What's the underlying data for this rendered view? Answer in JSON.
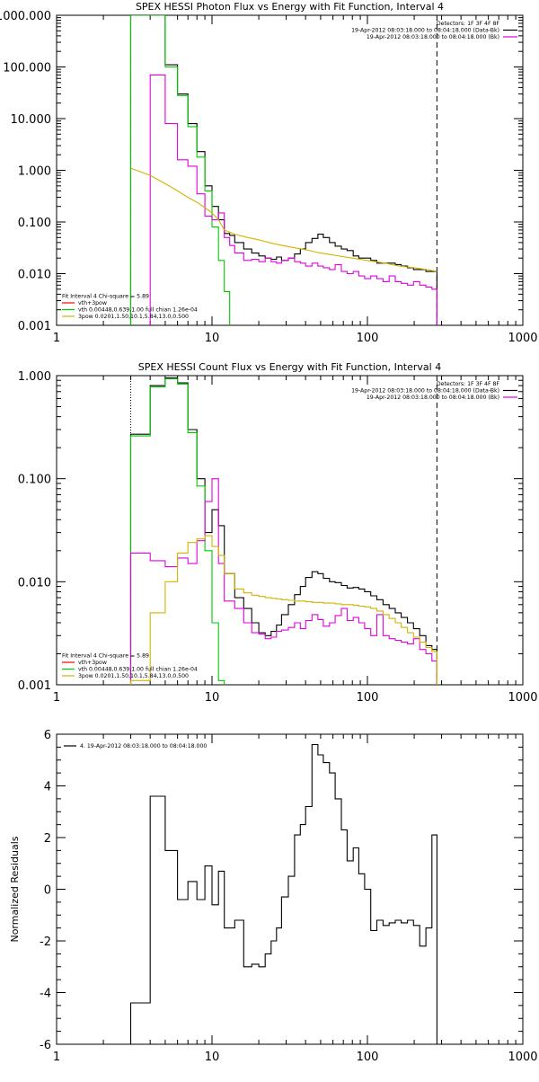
{
  "colors": {
    "data": "#000000",
    "background": "#d40000",
    "total_fit": "#ff0000",
    "vth": "#00c800",
    "vth2": "#0000ff",
    "spow": "#d2b400",
    "magenta": "#e000e0",
    "axis": "#000000"
  },
  "chart_data": [
    {
      "id": "photon",
      "type": "line",
      "title": "SPEX HESSI Photon Flux vs Energy with Fit Function, Interval 4",
      "xlabel": "",
      "ylabel": "",
      "xscale": "log",
      "yscale": "log",
      "xlim": [
        1,
        1000
      ],
      "ylim": [
        0.001,
        1000
      ],
      "x_ticks": [
        1,
        10,
        100,
        1000
      ],
      "x_tick_labels": [
        "1",
        "10",
        "100",
        "1000"
      ],
      "y_ticks": [
        0.001,
        0.01,
        0.1,
        1,
        10,
        100,
        1000
      ],
      "y_tick_labels": [
        "0.001",
        "0.010",
        "0.100",
        "1.000",
        "10.000",
        "100.000",
        "1000.000"
      ],
      "legend_top": {
        "placement": "top-right",
        "lines": [
          {
            "text": "Detectors: 1F 3F 4F 8F",
            "color": ""
          },
          {
            "text": "19-Apr-2012 08:03:18.000 to 08:04:18.000 (Data-Bk)",
            "color": "#000000"
          },
          {
            "text": "19-Apr-2012 08:03:18.000 to 08:04:18.000 (Bk)",
            "color": "#e000e0"
          }
        ]
      },
      "legend_bottom": {
        "placement": "bottom-left",
        "lines": [
          {
            "text": "Fit Interval 4   Chi-square = 5.89",
            "color": ""
          },
          {
            "text": "vth+3pow",
            "color": "#ff0000"
          },
          {
            "text": "vth 0.00448,0.639,1.00  full chian 1.26e-04",
            "color": "#00c800"
          },
          {
            "text": "3pow 0.0201,1.50,10.1,5.84,13.0,0.500",
            "color": "#d2b400"
          }
        ]
      },
      "vlines": [
        {
          "x": 3,
          "style": "dotted",
          "color": "#d2b400"
        },
        {
          "x": 280,
          "style": "dashed",
          "color": "#000000"
        }
      ],
      "series": [
        {
          "key": "data",
          "color": "#000000",
          "edges": [
            3,
            4,
            5,
            6,
            7,
            8,
            9,
            10,
            11,
            12,
            13,
            14,
            16,
            18,
            20,
            22,
            24,
            26,
            28,
            31,
            34,
            37,
            40,
            44,
            48,
            52,
            57,
            62,
            68,
            74,
            81,
            88,
            96,
            105,
            115,
            126,
            138,
            151,
            165,
            181,
            198,
            217,
            238,
            260,
            280
          ],
          "values": [
            1000,
            1000,
            110,
            30,
            8,
            2.3,
            0.5,
            0.2,
            0.11,
            0.06,
            0.055,
            0.04,
            0.03,
            0.025,
            0.022,
            0.02,
            0.019,
            0.021,
            0.018,
            0.02,
            0.024,
            0.03,
            0.04,
            0.048,
            0.058,
            0.05,
            0.04,
            0.034,
            0.03,
            0.028,
            0.022,
            0.02,
            0.02,
            0.018,
            0.016,
            0.016,
            0.016,
            0.015,
            0.014,
            0.013,
            0.012,
            0.012,
            0.011,
            0.011
          ]
        },
        {
          "key": "vth",
          "color": "#00c800",
          "edges": [
            3,
            4,
            5,
            6,
            7,
            8,
            9,
            10,
            11,
            12,
            13
          ],
          "values": [
            1000,
            1000,
            100,
            28,
            7,
            1.8,
            0.4,
            0.08,
            0.018,
            0.0045
          ]
        },
        {
          "key": "magenta",
          "color": "#e000e0",
          "edges": [
            4,
            5,
            6,
            7,
            8,
            9,
            10,
            11,
            12,
            13,
            14,
            16,
            18,
            20,
            22,
            24,
            26,
            28,
            31,
            34,
            37,
            40,
            44,
            48,
            52,
            57,
            62,
            68,
            74,
            81,
            88,
            96,
            105,
            115,
            126,
            138,
            151,
            165,
            181,
            198,
            217,
            238,
            260,
            280
          ],
          "values": [
            70,
            8,
            1.6,
            1.2,
            0.35,
            0.13,
            0.11,
            0.15,
            0.05,
            0.035,
            0.025,
            0.018,
            0.019,
            0.017,
            0.02,
            0.017,
            0.016,
            0.018,
            0.02,
            0.017,
            0.016,
            0.014,
            0.016,
            0.014,
            0.013,
            0.012,
            0.015,
            0.011,
            0.01,
            0.011,
            0.009,
            0.008,
            0.009,
            0.008,
            0.007,
            0.009,
            0.007,
            0.0065,
            0.006,
            0.007,
            0.006,
            0.0055,
            0.005
          ]
        },
        {
          "key": "spow",
          "color": "#d2b400",
          "curve": true,
          "x": [
            3,
            4,
            5,
            6,
            7,
            8,
            9,
            10,
            11,
            12,
            14,
            17,
            20,
            25,
            30,
            40,
            50,
            60,
            80,
            100,
            130,
            160,
            200,
            240,
            280
          ],
          "y": [
            1.1,
            0.8,
            0.55,
            0.4,
            0.3,
            0.24,
            0.19,
            0.15,
            0.11,
            0.07,
            0.058,
            0.05,
            0.045,
            0.038,
            0.034,
            0.029,
            0.025,
            0.023,
            0.02,
            0.018,
            0.016,
            0.014,
            0.013,
            0.012,
            0.011
          ]
        }
      ]
    },
    {
      "id": "count",
      "type": "line",
      "title": "SPEX HESSI Count Flux vs Energy with Fit Function, Interval 4",
      "xlabel": "",
      "ylabel": "",
      "xscale": "log",
      "yscale": "log",
      "xlim": [
        1,
        1000
      ],
      "ylim": [
        0.001,
        1
      ],
      "x_ticks": [
        1,
        10,
        100,
        1000
      ],
      "x_tick_labels": [
        "1",
        "10",
        "100",
        "1000"
      ],
      "y_ticks": [
        0.001,
        0.01,
        0.1,
        1
      ],
      "y_tick_labels": [
        "0.001",
        "0.010",
        "0.100",
        "1.000"
      ],
      "legend_top": {
        "placement": "top-right",
        "lines": [
          {
            "text": "Detectors: 1F 3F 4F 8F",
            "color": ""
          },
          {
            "text": "19-Apr-2012 08:03:18.000 to 08:04:18.000 (Data-Bk)",
            "color": "#000000"
          },
          {
            "text": "19-Apr-2012 08:03:18.000 to 08:04:18.000 (Bk)",
            "color": "#e000e0"
          }
        ]
      },
      "legend_bottom": {
        "placement": "bottom-left",
        "lines": [
          {
            "text": "Fit Interval 4   Chi-square = 5.89",
            "color": ""
          },
          {
            "text": "vth+3pow",
            "color": "#ff0000"
          },
          {
            "text": "vth 0.00448,0.639,1.00  full chian 1.26e-04",
            "color": "#00c800"
          },
          {
            "text": "3pow 0.0201,1.50,10.1,5.84,13.0,0.500",
            "color": "#d2b400"
          }
        ]
      },
      "vlines": [
        {
          "x": 3,
          "style": "dotted",
          "color": "#000000"
        },
        {
          "x": 280,
          "style": "dashed",
          "color": "#000000"
        }
      ],
      "series": [
        {
          "key": "data",
          "color": "#000000",
          "edges": [
            3,
            4,
            5,
            6,
            7,
            8,
            9,
            10,
            11,
            12,
            14,
            16,
            18,
            20,
            22,
            24,
            26,
            28,
            31,
            34,
            37,
            40,
            44,
            48,
            52,
            57,
            62,
            68,
            74,
            81,
            88,
            96,
            105,
            115,
            126,
            138,
            151,
            165,
            181,
            198,
            217,
            238,
            260,
            280
          ],
          "values": [
            0.27,
            0.8,
            0.95,
            0.85,
            0.3,
            0.1,
            0.03,
            0.05,
            0.035,
            0.012,
            0.007,
            0.0055,
            0.004,
            0.0032,
            0.003,
            0.0033,
            0.0038,
            0.0048,
            0.006,
            0.0075,
            0.009,
            0.011,
            0.0125,
            0.012,
            0.0108,
            0.01,
            0.0098,
            0.0092,
            0.0087,
            0.0088,
            0.0085,
            0.008,
            0.0073,
            0.0067,
            0.006,
            0.0055,
            0.005,
            0.0045,
            0.004,
            0.0035,
            0.003,
            0.0024,
            0.0022
          ]
        },
        {
          "key": "vth",
          "color": "#00c800",
          "edges": [
            3,
            4,
            5,
            6,
            7,
            8,
            9,
            10,
            11,
            12
          ],
          "values": [
            0.26,
            0.78,
            0.93,
            0.83,
            0.28,
            0.085,
            0.02,
            0.004,
            0.0011
          ]
        },
        {
          "key": "magenta",
          "color": "#e000e0",
          "edges": [
            3,
            4,
            5,
            6,
            7,
            8,
            9,
            10,
            11,
            12,
            14,
            16,
            18,
            20,
            22,
            24,
            26,
            28,
            31,
            34,
            37,
            40,
            44,
            48,
            52,
            57,
            62,
            68,
            74,
            81,
            88,
            96,
            105,
            115,
            126,
            138,
            151,
            165,
            181,
            198,
            217,
            238,
            260,
            280
          ],
          "values": [
            0.019,
            0.016,
            0.014,
            0.017,
            0.015,
            0.025,
            0.06,
            0.1,
            0.015,
            0.0065,
            0.0055,
            0.004,
            0.0032,
            0.0031,
            0.0028,
            0.0029,
            0.0033,
            0.0034,
            0.0036,
            0.004,
            0.0035,
            0.0042,
            0.0048,
            0.0043,
            0.0037,
            0.004,
            0.0047,
            0.0055,
            0.0042,
            0.0045,
            0.004,
            0.0035,
            0.003,
            0.0048,
            0.003,
            0.0028,
            0.0027,
            0.0026,
            0.0025,
            0.0028,
            0.0022,
            0.002,
            0.0017
          ]
        },
        {
          "key": "spow",
          "color": "#d2b400",
          "edges": [
            3,
            4,
            5,
            6,
            7,
            8,
            9,
            10,
            11,
            12,
            14,
            16,
            18,
            20,
            22,
            24,
            26,
            28,
            31,
            34,
            37,
            40,
            44,
            48,
            52,
            57,
            62,
            68,
            74,
            81,
            88,
            96,
            105,
            115,
            126,
            138,
            151,
            165,
            181,
            198,
            217,
            238,
            260,
            280
          ],
          "values": [
            0.0011,
            0.005,
            0.01,
            0.019,
            0.024,
            0.026,
            0.028,
            0.022,
            0.018,
            0.012,
            0.0085,
            0.0078,
            0.0074,
            0.0072,
            0.007,
            0.0069,
            0.0068,
            0.0067,
            0.0066,
            0.0065,
            0.0065,
            0.0064,
            0.0063,
            0.0063,
            0.0062,
            0.0062,
            0.0061,
            0.006,
            0.006,
            0.0059,
            0.0058,
            0.0057,
            0.0055,
            0.0052,
            0.0048,
            0.0044,
            0.004,
            0.0036,
            0.0032,
            0.0029,
            0.0026,
            0.0023,
            0.0021
          ]
        }
      ]
    },
    {
      "id": "resid",
      "type": "line",
      "title": "",
      "xlabel": "",
      "ylabel": "Normalized Residuals",
      "xscale": "log",
      "yscale": "linear",
      "xlim": [
        1,
        1000
      ],
      "ylim": [
        -6,
        6
      ],
      "x_ticks": [
        1,
        10,
        100,
        1000
      ],
      "x_tick_labels": [
        "1",
        "10",
        "100",
        "1000"
      ],
      "y_ticks": [
        -6,
        -4,
        -2,
        0,
        2,
        4,
        6
      ],
      "y_tick_labels": [
        "-6",
        "-4",
        "-2",
        "0",
        "2",
        "4",
        "6"
      ],
      "legend_top": {
        "placement": "top-left",
        "lines": [
          {
            "text": "4. 19-Apr-2012 08:03:18.000 to 08:04:18.000",
            "color": "#000000"
          }
        ]
      },
      "vlines": [],
      "series": [
        {
          "key": "residuals",
          "color": "#000000",
          "edges": [
            3,
            4,
            5,
            6,
            7,
            8,
            9,
            10,
            11,
            12,
            14,
            16,
            18,
            20,
            22,
            24,
            26,
            28,
            31,
            34,
            37,
            40,
            44,
            48,
            52,
            57,
            62,
            68,
            74,
            81,
            88,
            96,
            105,
            115,
            126,
            138,
            151,
            165,
            181,
            198,
            217,
            238,
            260,
            280
          ],
          "values": [
            -4.4,
            3.6,
            1.5,
            -0.4,
            0.3,
            -0.4,
            0.9,
            -0.6,
            0.7,
            -1.5,
            -1.2,
            -3.0,
            -2.9,
            -3.0,
            -2.5,
            -2.0,
            -1.5,
            -0.3,
            0.5,
            2.1,
            2.5,
            3.2,
            5.6,
            5.2,
            4.9,
            4.5,
            3.5,
            2.3,
            1.1,
            1.6,
            0.6,
            0.0,
            -1.6,
            -1.2,
            -1.4,
            -1.3,
            -1.2,
            -1.3,
            -1.2,
            -1.4,
            -2.2,
            -1.5,
            2.1
          ]
        }
      ]
    }
  ]
}
